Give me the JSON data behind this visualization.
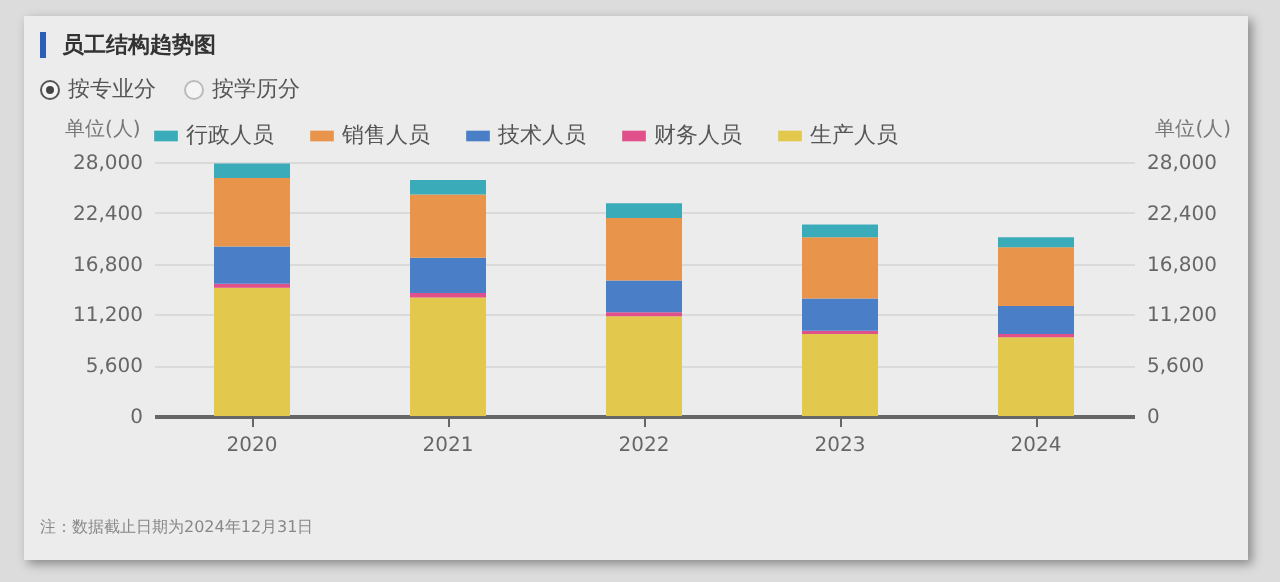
{
  "chart_data": {
    "type": "bar",
    "title": "员工结构趋势图",
    "ylabel": "单位(人)",
    "y2label": "单位(人)",
    "annotations": [
      "按专业分",
      "按学历分",
      "注：数据截止日期为2024年12月31日"
    ],
    "categories": [
      "2020",
      "2021",
      "2022",
      "2023",
      "2024"
    ],
    "stacked": true,
    "legend": "top",
    "grid": "y",
    "series": [
      {
        "name": "生产人员",
        "color": "#e3c84e",
        "values": [
          14150,
          13050,
          11000,
          9040,
          8670
        ]
      },
      {
        "name": "财务人员",
        "color": "#e0508a",
        "values": [
          440,
          510,
          430,
          370,
          370
        ]
      },
      {
        "name": "技术人员",
        "color": "#4a7fc7",
        "values": [
          4100,
          3890,
          3520,
          3530,
          3090
        ]
      },
      {
        "name": "销售人员",
        "color": "#e8944a",
        "values": [
          7540,
          6960,
          6890,
          6760,
          6470
        ]
      },
      {
        "name": "行政人员",
        "color": "#3aabb8",
        "values": [
          1610,
          1610,
          1620,
          1400,
          1100
        ]
      }
    ],
    "ylim": [
      0,
      28000
    ],
    "yticks": [
      {
        "value": 0,
        "label": "0"
      },
      {
        "value": 5600,
        "label": "5,600"
      },
      {
        "value": 11200,
        "label": "11,200"
      },
      {
        "value": 16800,
        "label": "16,800"
      },
      {
        "value": 22400,
        "label": "22,400"
      },
      {
        "value": 28000,
        "label": "28,000"
      }
    ],
    "y2lim": [
      0,
      28000
    ],
    "y2ticks": [
      {
        "value": 0,
        "label": "0"
      },
      {
        "value": 5600,
        "label": "5,600"
      },
      {
        "value": 11200,
        "label": "11,200"
      },
      {
        "value": 16800,
        "label": "16,800"
      },
      {
        "value": 22400,
        "label": "22,400"
      },
      {
        "value": 28000,
        "label": "28,000"
      }
    ]
  }
}
